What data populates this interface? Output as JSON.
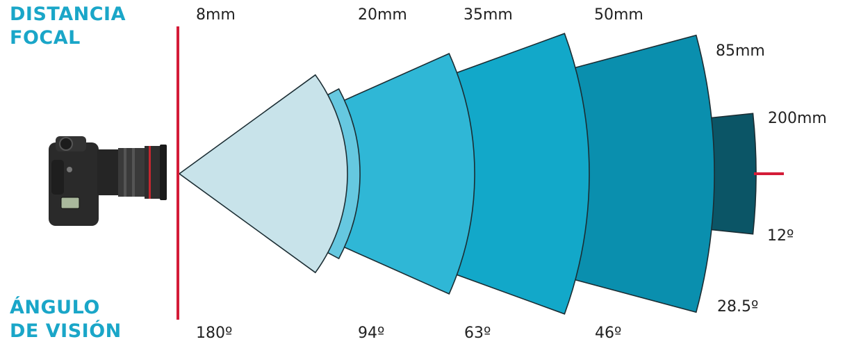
{
  "headings": {
    "focal_line1": "DISTANCIA",
    "focal_line2": "FOCAL",
    "angle_line1": "ÁNGULO",
    "angle_line2": "DE VISIÓN"
  },
  "focal_lengths": [
    {
      "focal": "8mm",
      "angle": "180º",
      "angle_deg": 180,
      "shade": "#c8e3ea"
    },
    {
      "focal": "20mm",
      "angle": "94º",
      "angle_deg": 94,
      "shade": "#66c8e0"
    },
    {
      "focal": "35mm",
      "angle": "63º",
      "angle_deg": 63,
      "shade": "#2fb7d6"
    },
    {
      "focal": "50mm",
      "angle": "46º",
      "angle_deg": 46,
      "shade": "#12a8c9"
    },
    {
      "focal": "85mm",
      "angle": "28.5º",
      "angle_deg": 28.5,
      "shade": "#0a8fae"
    },
    {
      "focal": "200mm",
      "angle": "12º",
      "angle_deg": 12,
      "shade": "#0b5566"
    }
  ],
  "colors": {
    "heading": "#1aa6c8",
    "axis_line": "#d41c38",
    "outline": "#1b2d33"
  },
  "icons": {
    "camera": "dslr-camera-icon"
  }
}
